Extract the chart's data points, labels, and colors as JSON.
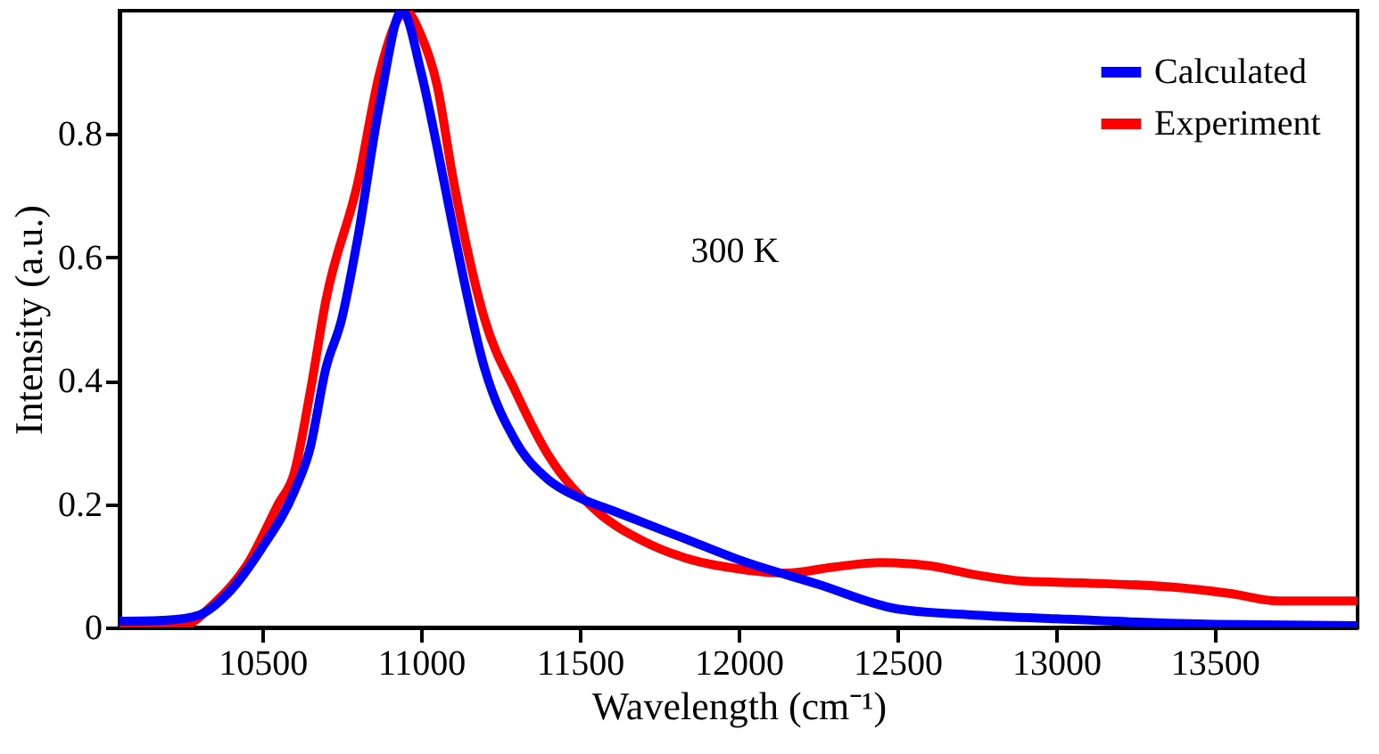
{
  "chart_data": {
    "type": "line",
    "xlabel": "Wavelength (cm⁻¹)",
    "ylabel": "Intensity (a.u.)",
    "xlim": [
      10050,
      13950
    ],
    "xticks": [
      10500,
      11000,
      11500,
      12000,
      12500,
      13000,
      13500
    ],
    "ylim": [
      0,
      1.0
    ],
    "yticks": [
      0,
      0.2,
      0.4,
      0.6,
      0.8
    ],
    "grid": false,
    "legend": "top right",
    "line_style": "solid",
    "marker": "none",
    "annotations": [
      "300 K"
    ],
    "series": [
      {
        "name": "Calculated",
        "color": "#0000ff",
        "x": [
          10050,
          10200,
          10300,
          10400,
          10500,
          10600,
          10650,
          10700,
          10750,
          10800,
          10870,
          10940,
          11000,
          11050,
          11100,
          11200,
          11300,
          11400,
          11500,
          11600,
          11700,
          11850,
          12000,
          12250,
          12500,
          12750,
          13000,
          13500,
          13950
        ],
        "values": [
          0.01,
          0.012,
          0.02,
          0.06,
          0.13,
          0.22,
          0.29,
          0.42,
          0.5,
          0.63,
          0.85,
          1.0,
          0.9,
          0.78,
          0.65,
          0.42,
          0.3,
          0.24,
          0.21,
          0.19,
          0.17,
          0.14,
          0.11,
          0.07,
          0.03,
          0.02,
          0.014,
          0.005,
          0.003
        ]
      },
      {
        "name": "Experiment",
        "color": "#ff0000",
        "x": [
          10050,
          10250,
          10350,
          10450,
          10550,
          10600,
          10650,
          10700,
          10800,
          10870,
          10930,
          10950,
          11000,
          11050,
          11100,
          11200,
          11300,
          11400,
          11550,
          11700,
          11850,
          12000,
          12150,
          12300,
          12450,
          12600,
          12750,
          12900,
          13100,
          13400,
          13550,
          13700,
          13950
        ],
        "values": [
          0.0,
          0.003,
          0.04,
          0.1,
          0.2,
          0.25,
          0.38,
          0.53,
          0.72,
          0.9,
          0.99,
          1.0,
          0.96,
          0.88,
          0.73,
          0.5,
          0.38,
          0.28,
          0.19,
          0.14,
          0.11,
          0.095,
          0.088,
          0.098,
          0.105,
          0.1,
          0.085,
          0.075,
          0.072,
          0.064,
          0.055,
          0.043,
          0.043
        ]
      }
    ]
  }
}
